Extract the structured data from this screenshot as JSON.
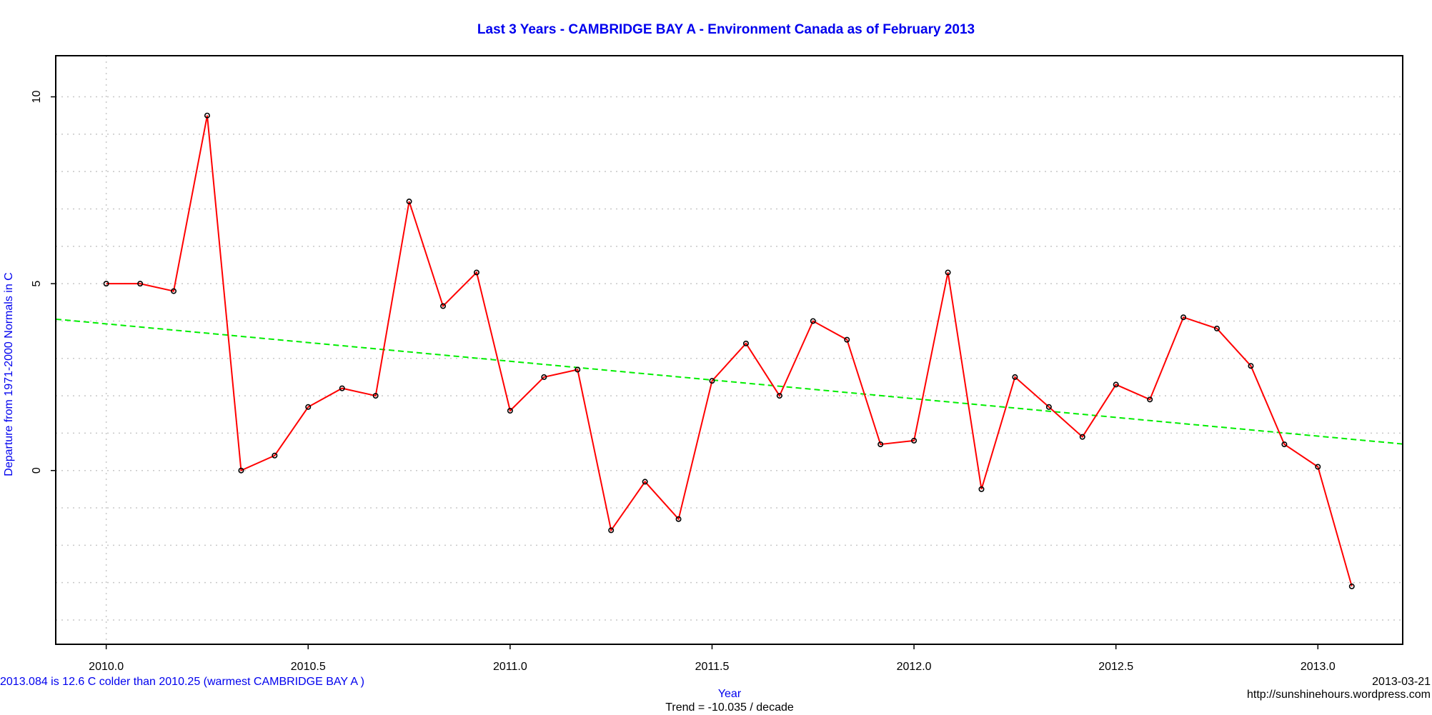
{
  "chart_data": {
    "type": "line",
    "title": "Last 3 Years - CAMBRIDGE BAY A - Environment Canada as of  February 2013",
    "xlabel": "Year",
    "ylabel": "Departure from 1971-2000 Normals in C",
    "xlim": [
      2009.875,
      2013.21
    ],
    "ylim": [
      -4.65,
      11.1
    ],
    "x_ticks": [
      2010.0,
      2010.5,
      2011.0,
      2011.5,
      2012.0,
      2012.5,
      2013.0
    ],
    "x_tick_labels": [
      "2010.0",
      "2010.5",
      "2011.0",
      "2011.5",
      "2012.0",
      "2012.5",
      "2013.0"
    ],
    "y_ticks": [
      0,
      5,
      10
    ],
    "y_tick_labels": [
      "0",
      "5",
      "10"
    ],
    "y_grid": [
      -4,
      -3,
      -2,
      -1,
      0,
      1,
      2,
      3,
      4,
      5,
      6,
      7,
      8,
      9,
      10
    ],
    "x_grid": [
      2010.0
    ],
    "grid": true,
    "series": [
      {
        "x": [
          2010.0,
          2010.084,
          2010.167,
          2010.25,
          2010.334,
          2010.417,
          2010.5,
          2010.584,
          2010.667,
          2010.75,
          2010.834,
          2010.917,
          2011.0,
          2011.084,
          2011.167,
          2011.25,
          2011.334,
          2011.417,
          2011.5,
          2011.584,
          2011.667,
          2011.75,
          2011.834,
          2011.917,
          2012.0,
          2012.084,
          2012.167,
          2012.25,
          2012.334,
          2012.417,
          2012.5,
          2012.584,
          2012.667,
          2012.75,
          2012.834,
          2012.917,
          2013.0,
          2013.084
        ],
        "values": [
          5.0,
          5.0,
          4.8,
          9.5,
          0.0,
          0.4,
          1.7,
          2.2,
          2.0,
          7.2,
          4.4,
          5.3,
          1.6,
          2.5,
          2.7,
          -1.6,
          -0.3,
          -1.3,
          2.4,
          3.4,
          2.0,
          4.0,
          3.5,
          0.7,
          0.8,
          5.3,
          -0.5,
          2.5,
          1.7,
          0.9,
          2.3,
          1.9,
          4.1,
          3.8,
          2.8,
          0.7,
          0.1,
          -3.1
        ],
        "color": "#ff0000"
      }
    ],
    "trend_line": {
      "x": [
        2009.875,
        2013.21
      ],
      "values": [
        4.05,
        0.71
      ],
      "color": "#00ee00"
    },
    "annotations": {
      "bottom_left": "2013.084 is 12.6 C  colder than 2010.25 (warmest CAMBRIDGE BAY A )",
      "trend": "Trend = -10.035 / decade",
      "date": "2013-03-21",
      "source": "http://sunshinehours.wordpress.com"
    },
    "colors": {
      "title": "#0000ee",
      "blue_text": "#0000ee",
      "series": "#ff0000",
      "trend": "#00ee00",
      "grid": "#c8c8c8"
    }
  }
}
